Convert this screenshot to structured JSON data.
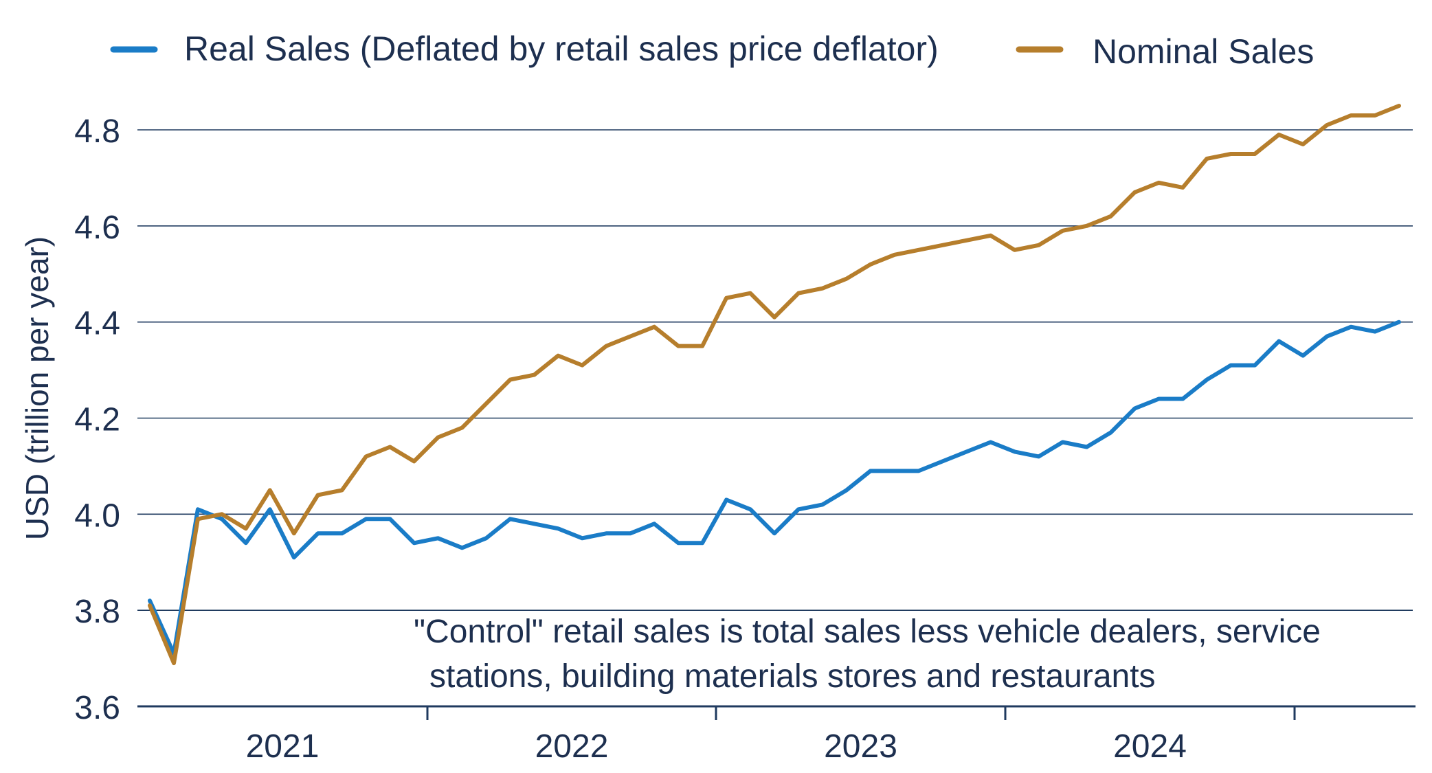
{
  "chart_data": {
    "type": "line",
    "title": "",
    "xlabel": "",
    "ylabel": "USD (trillion per year)",
    "ylim": [
      3.6,
      4.9
    ],
    "yticks": [
      "3.6",
      "3.8",
      "4.0",
      "4.2",
      "4.4",
      "4.6",
      "4.8"
    ],
    "ytick_values": [
      3.6,
      3.8,
      4.0,
      4.2,
      4.4,
      4.6,
      4.8
    ],
    "xticks": [
      "2021",
      "2022",
      "2023",
      "2024"
    ],
    "grid": true,
    "legend_position": "top",
    "note_lines": [
      "\"Control\" retail sales is total sales less vehicle dealers, service",
      "stations, building materials stores and restaurants"
    ],
    "series": [
      {
        "name": "Real Sales (Deflated by retail sales price deflator)",
        "color": "#1a7cc7",
        "values": [
          3.82,
          3.71,
          4.01,
          3.99,
          3.94,
          4.01,
          3.91,
          3.96,
          3.96,
          3.99,
          3.99,
          3.94,
          3.95,
          3.93,
          3.95,
          3.99,
          3.98,
          3.97,
          3.95,
          3.96,
          3.96,
          3.98,
          3.94,
          3.94,
          4.03,
          4.01,
          3.96,
          4.01,
          4.02,
          4.05,
          4.09,
          4.09,
          4.09,
          4.11,
          4.13,
          4.15,
          4.13,
          4.12,
          4.15,
          4.14,
          4.17,
          4.22,
          4.24,
          4.24,
          4.28,
          4.31,
          4.31,
          4.36,
          4.33,
          4.37,
          4.39,
          4.38,
          4.4
        ]
      },
      {
        "name": "Nominal Sales",
        "color": "#b67e2c",
        "values": [
          3.81,
          3.69,
          3.99,
          4.0,
          3.97,
          4.05,
          3.96,
          4.04,
          4.05,
          4.12,
          4.14,
          4.11,
          4.16,
          4.18,
          4.23,
          4.28,
          4.29,
          4.33,
          4.31,
          4.35,
          4.37,
          4.39,
          4.35,
          4.35,
          4.45,
          4.46,
          4.41,
          4.46,
          4.47,
          4.49,
          4.52,
          4.54,
          4.55,
          4.56,
          4.57,
          4.58,
          4.55,
          4.56,
          4.59,
          4.6,
          4.62,
          4.67,
          4.69,
          4.68,
          4.74,
          4.75,
          4.75,
          4.79,
          4.77,
          4.81,
          4.83,
          4.83,
          4.85
        ]
      }
    ]
  }
}
